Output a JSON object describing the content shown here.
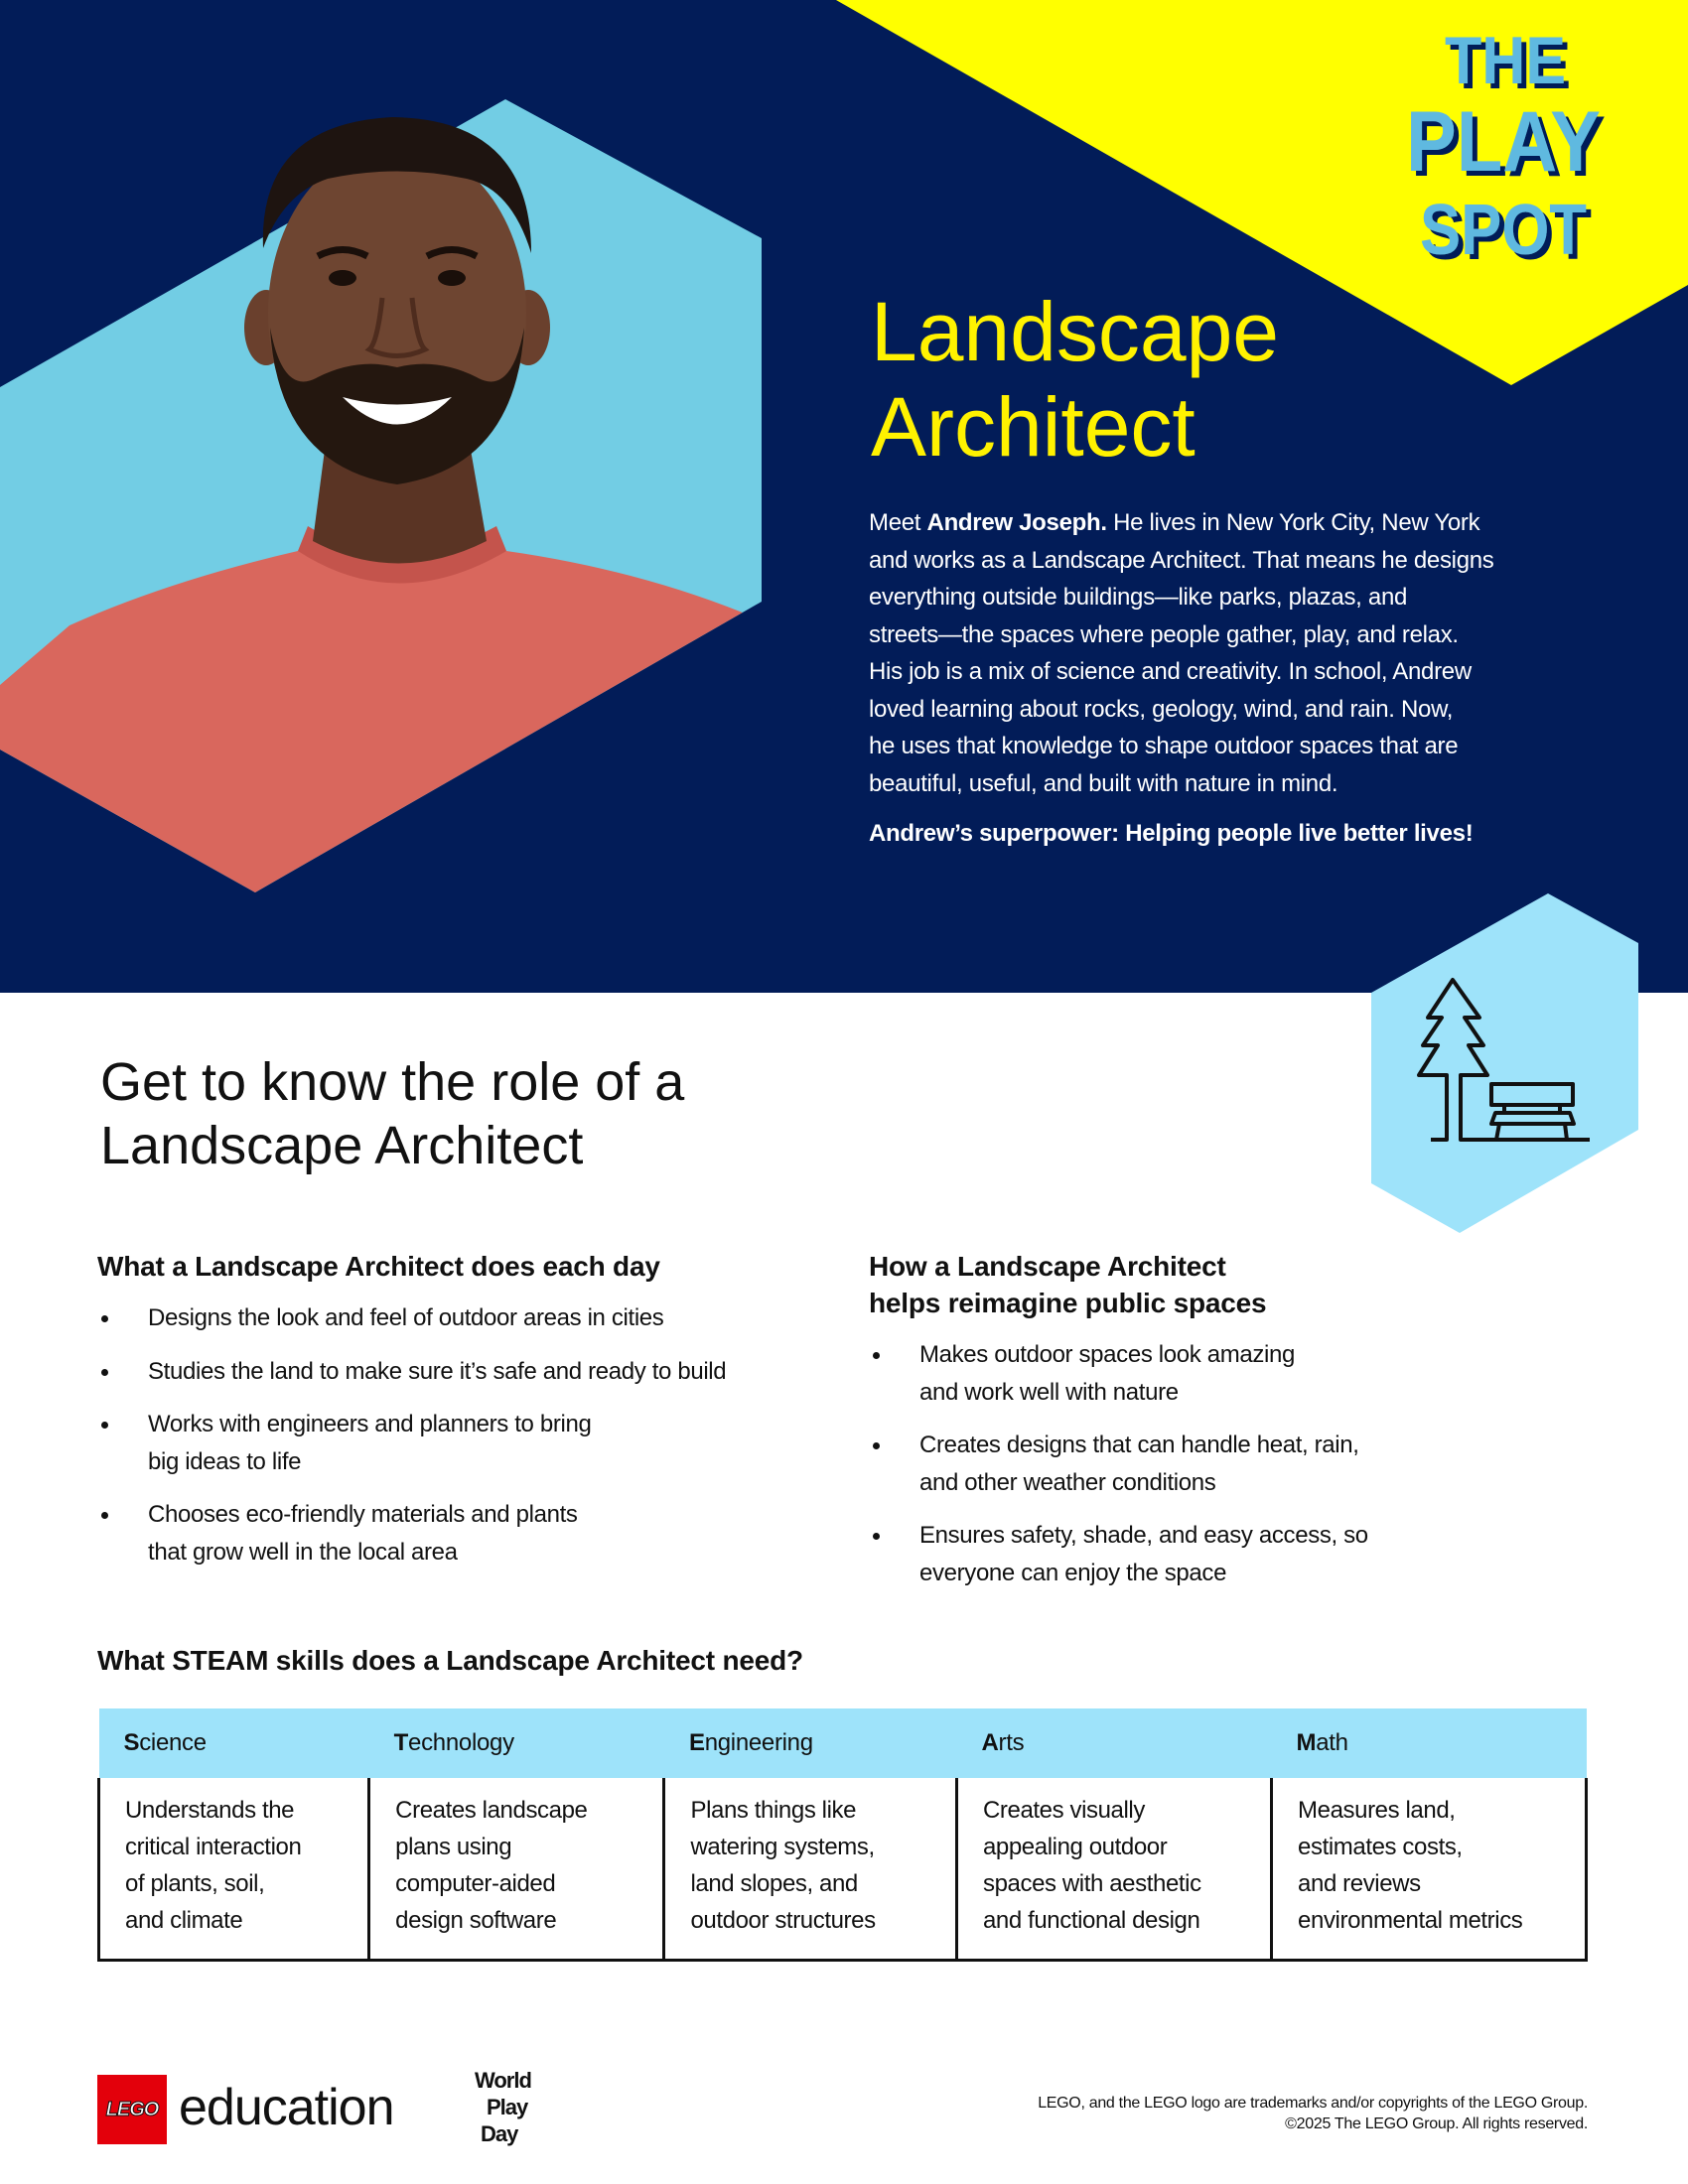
{
  "colors": {
    "navy": "#021c58",
    "yellow": "#ffff00",
    "photo_bg": "#72cde4",
    "icon_bg": "#9ee3fa",
    "title": "#fff200",
    "logo_blue": "#5fb9e0"
  },
  "logo": {
    "line1": "THE",
    "line2": "PLAY",
    "line3": "SPOT"
  },
  "hero": {
    "title_line1": "Landscape",
    "title_line2": "Architect",
    "intro": {
      "line1_pre": "Meet ",
      "line1_bold": "Andrew Joseph.",
      "line1_post": " He lives in New York City, New York",
      "lines": [
        "and works as a Landscape Architect. That means he designs",
        "everything outside buildings—like parks, plazas, and",
        "streets—the spaces where people gather, play, and relax.",
        "His job is a mix of science and creativity. In school, Andrew",
        "loved learning about rocks, geology, wind, and rain. Now,",
        "he uses that knowledge to shape outdoor spaces that are",
        "beautiful, useful, and built with nature in mind."
      ]
    },
    "superpower": "Andrew’s superpower: Helping people live better lives!",
    "photo_icon": "portrait-photo",
    "badge_icon": "tree-and-bench-icon"
  },
  "role": {
    "heading_line1": "Get to know the role of a",
    "heading_line2": "Landscape Architect",
    "daily": {
      "heading": "What a Landscape Architect does each day",
      "items": [
        [
          "Designs the look and feel of outdoor areas in cities"
        ],
        [
          "Studies the land to make sure it’s safe and ready to build"
        ],
        [
          "Works with engineers and planners to bring",
          "big ideas to life"
        ],
        [
          "Chooses eco-friendly materials and plants",
          "that grow well in the local area"
        ]
      ]
    },
    "public": {
      "heading_line1": "How a Landscape Architect",
      "heading_line2": "helps reimagine public spaces",
      "items": [
        [
          "Makes outdoor spaces look amazing",
          "and work well with nature"
        ],
        [
          "Creates designs that can handle heat, rain,",
          "and other weather conditions"
        ],
        [
          "Ensures safety, shade, and easy access, so",
          "everyone can enjoy the space"
        ]
      ]
    }
  },
  "steam": {
    "heading": "What STEAM skills does a Landscape Architect need?",
    "columns": [
      {
        "initial": "S",
        "rest": "cience",
        "lines": [
          "Understands the",
          "critical interaction",
          "of plants, soil,",
          "and climate"
        ]
      },
      {
        "initial": "T",
        "rest": "echnology",
        "lines": [
          "Creates landscape",
          "plans using",
          "computer-aided",
          "design software"
        ]
      },
      {
        "initial": "E",
        "rest": "ngineering",
        "lines": [
          "Plans things like",
          "watering systems,",
          "land slopes, and",
          "outdoor structures"
        ]
      },
      {
        "initial": "A",
        "rest": "rts",
        "lines": [
          "Creates visually",
          "appealing outdoor",
          "spaces with aesthetic",
          "and functional design"
        ]
      },
      {
        "initial": "M",
        "rest": "ath",
        "lines": [
          "Measures land,",
          "estimates costs,",
          "and reviews",
          "environmental metrics"
        ]
      }
    ]
  },
  "footer": {
    "lego_logo": "LEGO",
    "education_logo": "education",
    "world_play_day_logo": [
      "World",
      "Play",
      "Day"
    ],
    "copyright_line1": "LEGO, and the LEGO logo are trademarks and/or copyrights of the LEGO Group.",
    "copyright_line2": "©2025 The LEGO Group. All rights reserved."
  }
}
